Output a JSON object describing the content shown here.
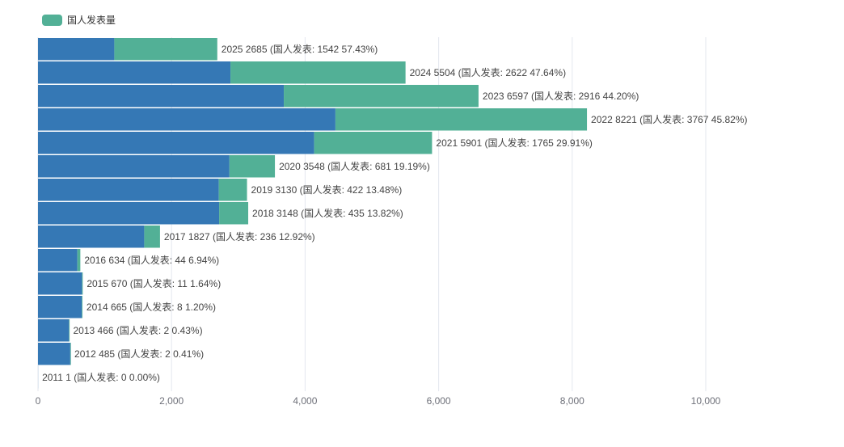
{
  "legend": {
    "label": "国人发表量",
    "color": "#52b096"
  },
  "colors": {
    "total": "#3578b5",
    "domestic": "#52b096",
    "grid": "#e3e7ee",
    "axis": "#6e7079",
    "label": "#444444"
  },
  "chart_data": {
    "type": "bar",
    "orientation": "horizontal",
    "categories": [
      "2025",
      "2024",
      "2023",
      "2022",
      "2021",
      "2020",
      "2019",
      "2018",
      "2017",
      "2016",
      "2015",
      "2014",
      "2013",
      "2012",
      "2011"
    ],
    "series": [
      {
        "values": [
          2685,
          5504,
          6597,
          8221,
          5901,
          3548,
          3130,
          3148,
          1827,
          634,
          670,
          665,
          466,
          485,
          1
        ]
      },
      {
        "name": "国人发表量",
        "values": [
          1542,
          2622,
          2916,
          3767,
          1765,
          681,
          422,
          435,
          236,
          44,
          11,
          8,
          2,
          2,
          0
        ]
      }
    ],
    "data_labels": [
      "2025 2685 (国人发表: 1542 57.43%)",
      "2024 5504 (国人发表: 2622 47.64%)",
      "2023 6597 (国人发表: 2916 44.20%)",
      "2022 8221 (国人发表: 3767 45.82%)",
      "2021 5901 (国人发表: 1765 29.91%)",
      "2020 3548 (国人发表: 681 19.19%)",
      "2019 3130 (国人发表: 422 13.48%)",
      "2018 3148 (国人发表: 435 13.82%)",
      "2017 1827 (国人发表: 236 12.92%)",
      "2016 634 (国人发表: 44 6.94%)",
      "2015 670 (国人发表: 11 1.64%)",
      "2014 665 (国人发表: 8 1.20%)",
      "2013 466 (国人发表: 2 0.43%)",
      "2012 485 (国人发表: 2 0.41%)",
      "2011 1 (国人发表: 0 0.00%)"
    ],
    "xlim": [
      0,
      10000
    ],
    "x_ticks": [
      0,
      2000,
      4000,
      6000,
      8000,
      10000
    ],
    "x_tick_labels": [
      "0",
      "2,000",
      "4,000",
      "6,000",
      "8,000",
      "10,000"
    ],
    "grid": true,
    "legend_position": "top-left"
  }
}
